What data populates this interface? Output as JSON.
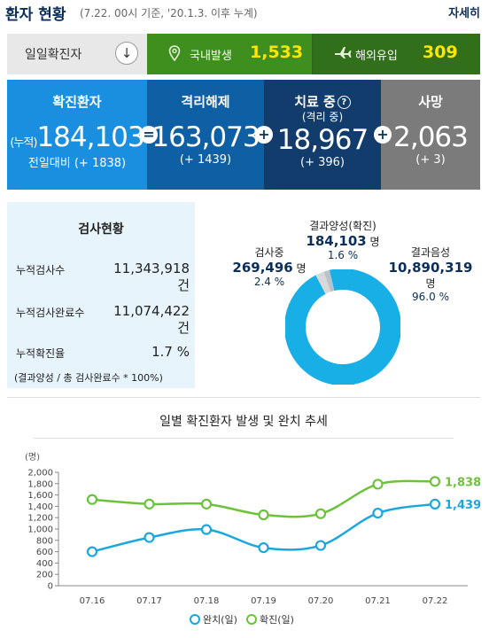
{
  "header": {
    "title": "환자 현황",
    "subtitle": "(7.22. 00시 기준, '20.1.3. 이후 누계)",
    "more": "자세히"
  },
  "daily": {
    "label": "일일확진자",
    "arrow": "↓",
    "domestic": {
      "label": "국내발생",
      "value": "1,533",
      "icon": "pin-icon"
    },
    "overseas": {
      "label": "해외유입",
      "value": "309",
      "icon": "plane-icon"
    }
  },
  "stats": {
    "confirmed": {
      "title": "확진환자",
      "prefix": "(누적)",
      "value": "184,103",
      "change": "전일대비 (+ 1838)"
    },
    "released": {
      "title": "격리해제",
      "value": "163,073",
      "change": "(+ 1439)"
    },
    "treating": {
      "title": "치료 중",
      "subtitle": "(격리 중)",
      "value": "18,967",
      "change": "(+ 396)"
    },
    "deaths": {
      "title": "사망",
      "value": "2,063",
      "change": "(+ 3)"
    },
    "ops": {
      "eq": "=",
      "plus1": "+",
      "plus2": "+"
    }
  },
  "tests": {
    "title": "검사현황",
    "rows": [
      {
        "label": "누적검사수",
        "value": "11,343,918",
        "unit": "건"
      },
      {
        "label": "누적검사완료수",
        "value": "11,074,422",
        "unit": "건"
      },
      {
        "label": "누적확진율",
        "value": "1.7 %"
      }
    ],
    "note": "(결과양성 / 총 검사완료수 * 100%)",
    "donut": {
      "positive": {
        "label": "결과양성(확진)",
        "value": "184,103",
        "unit": "명",
        "pct": "1.6 %",
        "fraction": 0.016,
        "color": "#b9c3cc"
      },
      "testing": {
        "label": "검사중",
        "value": "269,496",
        "unit": "명",
        "pct": "2.4 %",
        "fraction": 0.024,
        "color": "#d9d9d9"
      },
      "negative": {
        "label": "결과음성",
        "value": "10,890,319",
        "unit": "명",
        "pct": "96.0 %",
        "fraction": 0.96,
        "color": "#18aee6"
      }
    }
  },
  "chart": {
    "title": "일별 확진환자 발생 및 완치 추세",
    "legend_release": "완치(일)",
    "legend_confirm": "확진(일)"
  },
  "chart_data": {
    "type": "line",
    "title": "일별 확진환자 발생 및 완치 추세",
    "ylabel": "(명)",
    "categories": [
      "07.16",
      "07.17",
      "07.18",
      "07.19",
      "07.20",
      "07.21",
      "07.22"
    ],
    "ylim": [
      0,
      2000
    ],
    "yticks": [
      0,
      200,
      400,
      600,
      800,
      1000,
      1200,
      1400,
      1600,
      1800,
      2000
    ],
    "ytick_labels": [
      "0",
      "200",
      "400",
      "600",
      "800",
      "1,000",
      "1,200",
      "1,400",
      "1,600",
      "1,800",
      "2,000"
    ],
    "grid": false,
    "legend_position": "bottom",
    "series": [
      {
        "name": "완치(일)",
        "color": "#1aa7e0",
        "values": [
          600,
          850,
          990,
          670,
          710,
          1280,
          1439
        ],
        "end_label": "1,439"
      },
      {
        "name": "확진(일)",
        "color": "#6cc23a",
        "values": [
          1520,
          1440,
          1440,
          1250,
          1270,
          1790,
          1838
        ],
        "end_label": "1,838"
      }
    ]
  }
}
